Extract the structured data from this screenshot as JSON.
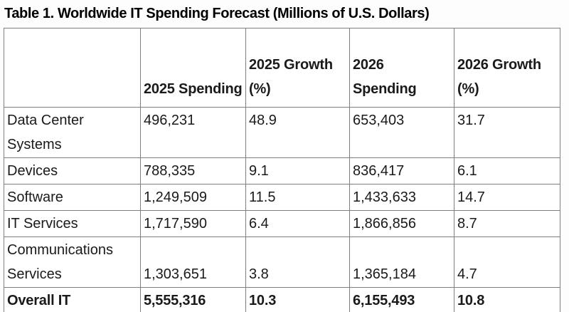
{
  "title": "Table 1. Worldwide IT Spending Forecast (Millions of U.S. Dollars)",
  "table": {
    "columns": [
      "",
      "2025 Spending",
      "2025 Growth (%)",
      "2026 Spending",
      "2026 Growth (%)"
    ],
    "rows": [
      {
        "label": "Data Center Systems",
        "values": [
          "496,231",
          "48.9",
          "653,403",
          "31.7"
        ],
        "bold": false
      },
      {
        "label": "Devices",
        "values": [
          "788,335",
          "9.1",
          "836,417",
          "6.1"
        ],
        "bold": false
      },
      {
        "label": "Software",
        "values": [
          "1,249,509",
          "11.5",
          "1,433,633",
          "14.7"
        ],
        "bold": false
      },
      {
        "label": "IT Services",
        "values": [
          "1,717,590",
          "6.4",
          "1,866,856",
          "8.7"
        ],
        "bold": false
      },
      {
        "label": "Communications Services",
        "values": [
          "1,303,651",
          "3.8",
          "1,365,184",
          "4.7"
        ],
        "bold": false
      },
      {
        "label": "Overall IT",
        "values": [
          "5,555,316",
          "10.3",
          "6,155,493",
          "10.8"
        ],
        "bold": true
      }
    ]
  },
  "colors": {
    "text": "#1a1a1a",
    "title": "#000000",
    "border": "#7f7f7f",
    "background": "#ffffff"
  },
  "chart_data": {
    "type": "table",
    "title": "Table 1. Worldwide IT Spending Forecast (Millions of U.S. Dollars)",
    "units": "Millions of U.S. Dollars",
    "columns": [
      "2025 Spending",
      "2025 Growth (%)",
      "2026 Spending",
      "2026 Growth (%)"
    ],
    "categories": [
      "Data Center Systems",
      "Devices",
      "Software",
      "IT Services",
      "Communications Services",
      "Overall IT"
    ],
    "series": [
      {
        "name": "2025 Spending",
        "values": [
          496231,
          788335,
          1249509,
          1717590,
          1303651,
          5555316
        ]
      },
      {
        "name": "2025 Growth (%)",
        "values": [
          48.9,
          9.1,
          11.5,
          6.4,
          3.8,
          10.3
        ]
      },
      {
        "name": "2026 Spending",
        "values": [
          653403,
          836417,
          1433633,
          1866856,
          1365184,
          6155493
        ]
      },
      {
        "name": "2026 Growth (%)",
        "values": [
          31.7,
          6.1,
          14.7,
          8.7,
          4.7,
          10.8
        ]
      }
    ]
  }
}
